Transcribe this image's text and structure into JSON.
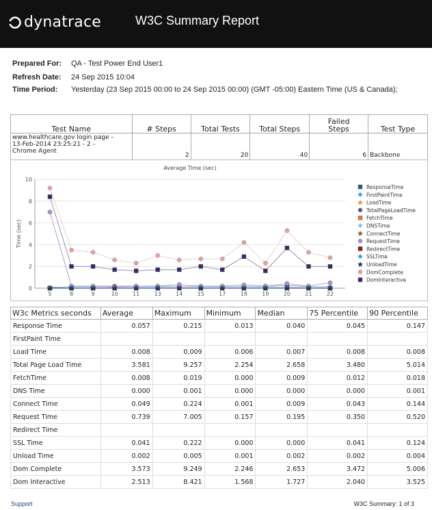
{
  "header": {
    "logo_text": "dynatrace",
    "title": "W3C Summary Report"
  },
  "meta": {
    "prepared_for_label": "Prepared For:",
    "prepared_for": "QA - Test Power End User1",
    "refresh_label": "Refresh Date:",
    "refresh_date": "24 Sep 2015 10:04",
    "period_label": "Time Period:",
    "period": "Yesterday  (23 Sep 2015 00:00 to 24 Sep 2015 00:00)  (GMT -05:00) Eastern Time (US & Canada);"
  },
  "tests_table": {
    "headers": [
      "Test Name",
      "# Steps",
      "Total Tests",
      "Total Steps",
      "Failed Steps",
      "Test Type"
    ],
    "row": {
      "name_line1": "www.healthcare.gov login page -",
      "name_line2": "13-Feb-2014 23:25:21 - 2 -",
      "name_line3": "Chrome Agent",
      "steps": "2",
      "total_tests": "20",
      "total_steps": "40",
      "failed_steps": "6",
      "test_type": "Backbone"
    }
  },
  "chart_data": {
    "type": "line",
    "title": "Average Time (sec)",
    "ylabel": "Time (sec)",
    "xlabel": "",
    "ylim": [
      0,
      10
    ],
    "yticks": [
      "0",
      "2",
      "4",
      "6",
      "8",
      "10"
    ],
    "categories": [
      "5",
      "8",
      "9",
      "10",
      "11",
      "13",
      "14",
      "15",
      "17",
      "18",
      "19",
      "20",
      "21",
      "22"
    ],
    "legend_position": "right",
    "series": [
      {
        "name": "ResponseTime",
        "color": "#1f5e9c",
        "marker": "square",
        "values": [
          0.02,
          0.02,
          0.02,
          0.02,
          0.02,
          0.02,
          0.02,
          0.02,
          0.02,
          0.02,
          0.02,
          0.05,
          0.02,
          0.02
        ]
      },
      {
        "name": "FirstPaintTime",
        "color": "#4aa0e0",
        "marker": "diamond",
        "values": [
          0.08,
          0.15,
          0.15,
          0.15,
          0.15,
          0.15,
          0.2,
          0.15,
          0.15,
          0.15,
          0.15,
          0.2,
          0.15,
          0.15
        ]
      },
      {
        "name": "LoadTime",
        "color": "#e0a030",
        "marker": "star",
        "values": [
          0.01,
          0.01,
          0.01,
          0.01,
          0.01,
          0.01,
          0.01,
          0.01,
          0.01,
          0.01,
          0.01,
          0.01,
          0.01,
          0.01
        ]
      },
      {
        "name": "TotalPageLoadTime",
        "color": "#6a4c9c",
        "marker": "circle",
        "values": [
          7.0,
          0.2,
          0.2,
          0.2,
          0.2,
          0.2,
          0.2,
          0.2,
          0.2,
          0.3,
          0.2,
          0.3,
          0.2,
          0.5
        ]
      },
      {
        "name": "FetchTime",
        "color": "#e07a40",
        "marker": "square",
        "values": [
          0.01,
          0.01,
          0.01,
          0.01,
          0.01,
          0.01,
          0.01,
          0.01,
          0.01,
          0.01,
          0.01,
          0.01,
          0.01,
          0.01
        ]
      },
      {
        "name": "DNSTime",
        "color": "#7fc8e8",
        "marker": "diamond",
        "values": [
          0.0,
          0.0,
          0.0,
          0.0,
          0.0,
          0.0,
          0.0,
          0.0,
          0.0,
          0.0,
          0.0,
          0.0,
          0.0,
          0.0
        ]
      },
      {
        "name": "ConnectTime",
        "color": "#8c5a2a",
        "marker": "star",
        "values": [
          0.05,
          0.05,
          0.05,
          0.05,
          0.05,
          0.05,
          0.05,
          0.05,
          0.05,
          0.05,
          0.05,
          0.05,
          0.05,
          0.05
        ]
      },
      {
        "name": "RequestTime",
        "color": "#b48ad8",
        "marker": "circle",
        "values": [
          7.0,
          0.2,
          0.2,
          0.1,
          0.2,
          0.2,
          0.35,
          0.2,
          0.2,
          0.3,
          0.2,
          0.45,
          0.2,
          0.5
        ]
      },
      {
        "name": "RedirectTime",
        "color": "#8a1a1a",
        "marker": "square",
        "values": [
          0.0,
          0.0,
          0.0,
          0.0,
          0.0,
          0.0,
          0.0,
          0.0,
          0.0,
          0.0,
          0.0,
          0.0,
          0.0,
          0.0
        ]
      },
      {
        "name": "SSLTime",
        "color": "#3aa0e0",
        "marker": "diamond",
        "values": [
          0.04,
          0.04,
          0.04,
          0.04,
          0.04,
          0.04,
          0.04,
          0.04,
          0.04,
          0.04,
          0.04,
          0.04,
          0.04,
          0.04
        ]
      },
      {
        "name": "UnloadTime",
        "color": "#1a3a6a",
        "marker": "star",
        "values": [
          0.0,
          0.0,
          0.0,
          0.0,
          0.0,
          0.0,
          0.0,
          0.0,
          0.0,
          0.0,
          0.0,
          0.0,
          0.0,
          0.0
        ]
      },
      {
        "name": "DomComplete",
        "color": "#e8a0a0",
        "marker": "circle",
        "values": [
          9.2,
          3.5,
          3.3,
          2.6,
          2.3,
          3.0,
          2.6,
          2.7,
          2.7,
          4.2,
          2.3,
          5.3,
          3.3,
          2.8
        ]
      },
      {
        "name": "DomInteractive",
        "color": "#3a2a6a",
        "marker": "square",
        "values": [
          8.4,
          2.0,
          2.0,
          1.7,
          1.6,
          1.7,
          1.7,
          2.0,
          1.7,
          2.9,
          1.6,
          3.7,
          2.0,
          2.0
        ]
      }
    ]
  },
  "metrics_table": {
    "headers": [
      "W3c Metrics seconds",
      "Average",
      "Maximum",
      "Minimum",
      "Median",
      "75 Percentile",
      "90 Percentile"
    ],
    "rows": [
      [
        "Response Time",
        "0.057",
        "0.215",
        "0.013",
        "0.040",
        "0.045",
        "0.147"
      ],
      [
        "FirstPaint Time",
        "",
        "",
        "",
        "",
        "",
        ""
      ],
      [
        "Load Time",
        "0.008",
        "0.009",
        "0.006",
        "0.007",
        "0.008",
        "0.008"
      ],
      [
        "Total Page Load Time",
        "3.581",
        "9.257",
        "2.254",
        "2.658",
        "3.480",
        "5.014"
      ],
      [
        "FetchTime",
        "0.008",
        "0.019",
        "0.000",
        "0.009",
        "0.012",
        "0.018"
      ],
      [
        "DNS Time",
        "0.000",
        "0.001",
        "0.000",
        "0.000",
        "0.000",
        "0.001"
      ],
      [
        "Connect Time",
        "0.049",
        "0.224",
        "0.001",
        "0.009",
        "0.043",
        "0.144"
      ],
      [
        "Request Time",
        "0.739",
        "7.005",
        "0.157",
        "0.195",
        "0.350",
        "0.520"
      ],
      [
        "Redirect Time",
        "",
        "",
        "",
        "",
        "",
        ""
      ],
      [
        "SSL Time",
        "0.041",
        "0.222",
        "0.000",
        "0.000",
        "0.041",
        "0.124"
      ],
      [
        "Unload Time",
        "0.002",
        "0.005",
        "0.001",
        "0.002",
        "0.002",
        "0.004"
      ],
      [
        "Dom Complete",
        "3.573",
        "9.249",
        "2.246",
        "2.653",
        "3.472",
        "5.006"
      ],
      [
        "Dom Interactive",
        "2.513",
        "8.421",
        "1.568",
        "1.727",
        "2.040",
        "3.525"
      ]
    ]
  },
  "footer": {
    "support": "Support",
    "page": "W3C Summary: 1 of 3"
  }
}
